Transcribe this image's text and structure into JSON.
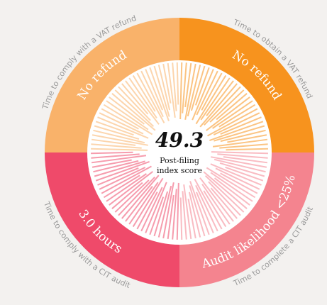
{
  "center": {
    "score": "49.3",
    "label_lines": [
      "Post-filing",
      "index score"
    ]
  },
  "quadrants": [
    {
      "title": "Time to comply with a VAT refund",
      "value": "No refund",
      "color": "#f9b26a"
    },
    {
      "title": "Time to obtain a VAT refund",
      "value": "No refund",
      "color": "#f7931e"
    },
    {
      "title": "Time to complete a CIT audit",
      "value": "Audit likelihood <25%",
      "color": "#f4848f"
    },
    {
      "title": "Time to comply with a CIT audit",
      "value": "3.0 hours",
      "color": "#ef4a6a"
    }
  ]
}
